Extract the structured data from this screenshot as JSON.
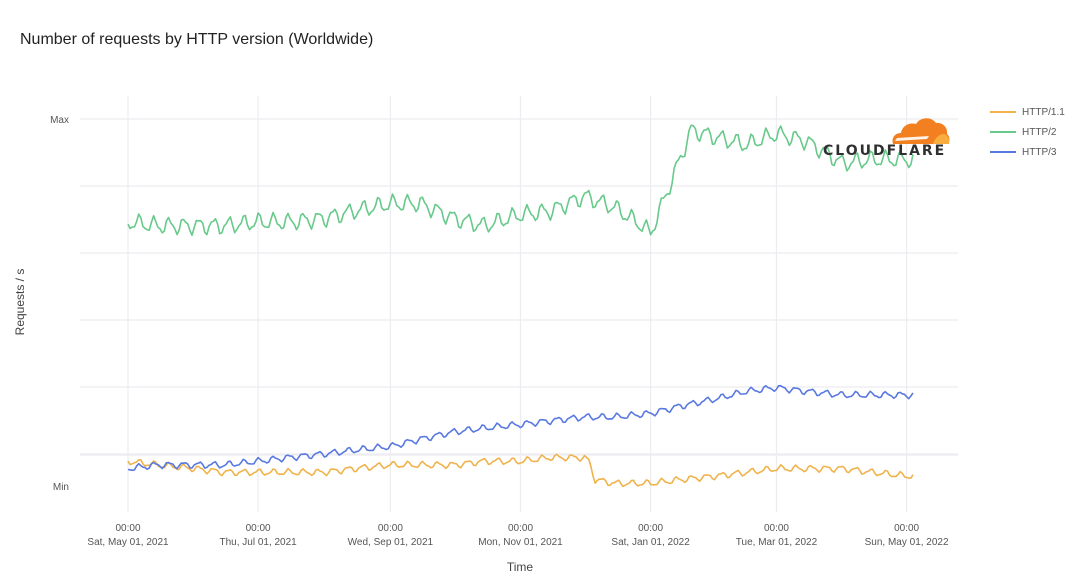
{
  "chart_data": {
    "type": "line",
    "title": "Number of requests by HTTP version (Worldwide)",
    "xlabel": "Time",
    "ylabel": "Requests / s",
    "y_ticks": [
      "Max",
      "Min"
    ],
    "x_ticks": [
      {
        "time": "00:00",
        "date": "Sat, May 01, 2021"
      },
      {
        "time": "00:00",
        "date": "Thu, Jul 01, 2021"
      },
      {
        "time": "00:00",
        "date": "Wed, Sep 01, 2021"
      },
      {
        "time": "00:00",
        "date": "Mon, Nov 01, 2021"
      },
      {
        "time": "00:00",
        "date": "Sat, Jan 01, 2022"
      },
      {
        "time": "00:00",
        "date": "Tue, Mar 01, 2022"
      },
      {
        "time": "00:00",
        "date": "Sun, May 01, 2022"
      }
    ],
    "x_range": [
      "2021-05-01",
      "2022-05-04"
    ],
    "y_range_normalized": [
      0,
      1
    ],
    "grid": true,
    "legend_position": "right",
    "series": [
      {
        "name": "HTTP/1.1",
        "color": "#f0b34c",
        "points": [
          [
            "2021-05-01",
            0.07
          ],
          [
            "2021-05-15",
            0.06
          ],
          [
            "2021-06-01",
            0.05
          ],
          [
            "2021-06-15",
            0.04
          ],
          [
            "2021-07-01",
            0.04
          ],
          [
            "2021-07-15",
            0.04
          ],
          [
            "2021-08-01",
            0.04
          ],
          [
            "2021-08-15",
            0.05
          ],
          [
            "2021-09-01",
            0.06
          ],
          [
            "2021-09-15",
            0.06
          ],
          [
            "2021-10-01",
            0.06
          ],
          [
            "2021-10-15",
            0.07
          ],
          [
            "2021-11-01",
            0.07
          ],
          [
            "2021-11-15",
            0.08
          ],
          [
            "2021-12-01",
            0.08
          ],
          [
            "2021-12-03",
            0.07
          ],
          [
            "2021-12-06",
            0.02
          ],
          [
            "2021-12-15",
            0.01
          ],
          [
            "2022-01-01",
            0.01
          ],
          [
            "2022-01-15",
            0.02
          ],
          [
            "2022-02-01",
            0.03
          ],
          [
            "2022-02-15",
            0.04
          ],
          [
            "2022-03-01",
            0.05
          ],
          [
            "2022-03-15",
            0.05
          ],
          [
            "2022-04-01",
            0.05
          ],
          [
            "2022-04-15",
            0.04
          ],
          [
            "2022-05-01",
            0.03
          ],
          [
            "2022-05-04",
            0.03
          ]
        ]
      },
      {
        "name": "HTTP/2",
        "color": "#67c98a",
        "points": [
          [
            "2021-05-01",
            0.72
          ],
          [
            "2021-05-15",
            0.71
          ],
          [
            "2021-06-01",
            0.71
          ],
          [
            "2021-06-15",
            0.71
          ],
          [
            "2021-07-01",
            0.72
          ],
          [
            "2021-07-15",
            0.72
          ],
          [
            "2021-08-01",
            0.73
          ],
          [
            "2021-08-15",
            0.75
          ],
          [
            "2021-09-01",
            0.77
          ],
          [
            "2021-09-15",
            0.77
          ],
          [
            "2021-10-01",
            0.73
          ],
          [
            "2021-10-15",
            0.71
          ],
          [
            "2021-11-01",
            0.74
          ],
          [
            "2021-11-15",
            0.75
          ],
          [
            "2021-12-01",
            0.79
          ],
          [
            "2021-12-15",
            0.76
          ],
          [
            "2021-12-28",
            0.71
          ],
          [
            "2022-01-01",
            0.69
          ],
          [
            "2022-01-10",
            0.82
          ],
          [
            "2022-01-20",
            0.97
          ],
          [
            "2022-02-01",
            0.95
          ],
          [
            "2022-02-15",
            0.93
          ],
          [
            "2022-03-01",
            0.96
          ],
          [
            "2022-03-15",
            0.94
          ],
          [
            "2022-04-01",
            0.88
          ],
          [
            "2022-04-15",
            0.89
          ],
          [
            "2022-05-01",
            0.89
          ],
          [
            "2022-05-04",
            0.89
          ]
        ]
      },
      {
        "name": "HTTP/3",
        "color": "#5a79e0",
        "points": [
          [
            "2021-05-01",
            0.05
          ],
          [
            "2021-05-15",
            0.06
          ],
          [
            "2021-06-01",
            0.06
          ],
          [
            "2021-06-15",
            0.06
          ],
          [
            "2021-07-01",
            0.07
          ],
          [
            "2021-07-15",
            0.08
          ],
          [
            "2021-08-01",
            0.09
          ],
          [
            "2021-08-15",
            0.1
          ],
          [
            "2021-09-01",
            0.11
          ],
          [
            "2021-09-15",
            0.13
          ],
          [
            "2021-10-01",
            0.15
          ],
          [
            "2021-10-15",
            0.16
          ],
          [
            "2021-11-01",
            0.17
          ],
          [
            "2021-11-15",
            0.18
          ],
          [
            "2021-12-01",
            0.19
          ],
          [
            "2021-12-15",
            0.19
          ],
          [
            "2022-01-01",
            0.2
          ],
          [
            "2022-01-15",
            0.22
          ],
          [
            "2022-02-01",
            0.24
          ],
          [
            "2022-02-15",
            0.26
          ],
          [
            "2022-03-01",
            0.27
          ],
          [
            "2022-03-15",
            0.26
          ],
          [
            "2022-04-01",
            0.25
          ],
          [
            "2022-04-15",
            0.25
          ],
          [
            "2022-05-01",
            0.25
          ],
          [
            "2022-05-04",
            0.25
          ]
        ]
      }
    ]
  },
  "logo": {
    "text": "CLOUDFLARE",
    "cloud_color": "#f38020",
    "cloud_highlight": "#faad3f"
  }
}
